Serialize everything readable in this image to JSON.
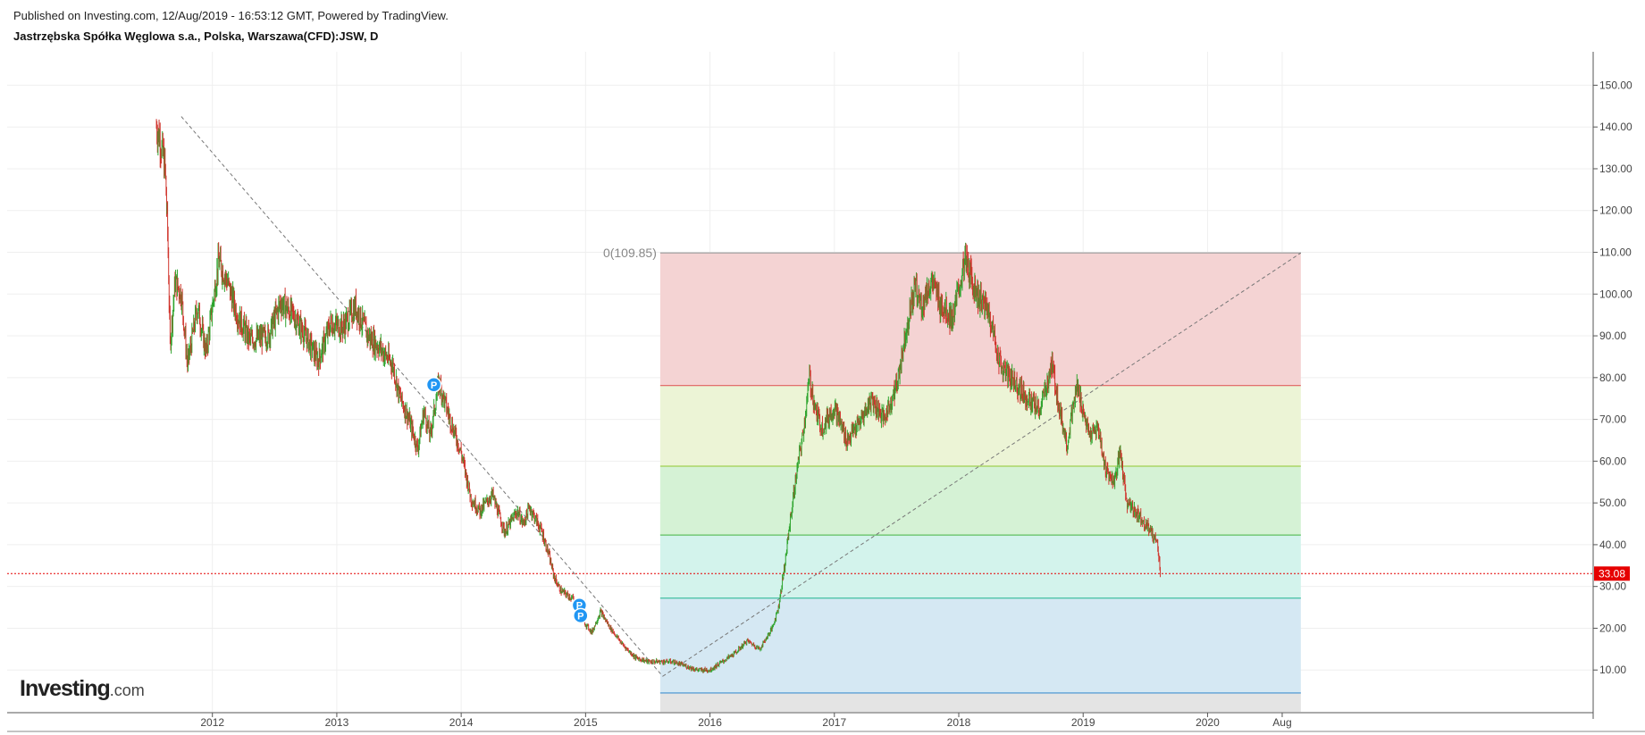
{
  "header": {
    "published": "Published on Investing.com, 12/Aug/2019 - 16:53:12 GMT, Powered by TradingView.",
    "symbol": "Jastrzębska Spółka Węglowa s.a., Polska, Warszawa(CFD):JSW, D"
  },
  "logo": {
    "brand": "Investing",
    "suffix": ".com"
  },
  "colors": {
    "up": "#2fa52f",
    "down": "#d0342c",
    "last_price": "#e60000"
  },
  "chart_data": {
    "type": "line",
    "ylim": [
      0,
      158
    ],
    "y_ticks": [
      "10.00",
      "20.00",
      "30.00",
      "40.00",
      "50.00",
      "60.00",
      "70.00",
      "80.00",
      "90.00",
      "100.00",
      "110.00",
      "120.00",
      "130.00",
      "140.00",
      "150.00"
    ],
    "y_tick_values": [
      10,
      20,
      30,
      40,
      50,
      60,
      70,
      80,
      90,
      100,
      110,
      120,
      130,
      140,
      150
    ],
    "x_ticks": [
      "2012",
      "2013",
      "2014",
      "2015",
      "2016",
      "2017",
      "2018",
      "2019",
      "2020",
      "Aug"
    ],
    "x_tick_values": [
      2012.0,
      2013.0,
      2014.0,
      2015.0,
      2016.0,
      2017.0,
      2018.0,
      2019.0,
      2020.0,
      2020.6
    ],
    "xlim": [
      2010.35,
      2023.1
    ],
    "last_price": 33.08,
    "last_price_label": "33.08",
    "series": [
      {
        "x": [
          2011.55,
          2011.58,
          2011.62,
          2011.64,
          2011.66,
          2011.7,
          2011.75,
          2011.8,
          2011.88,
          2011.95,
          2012.05,
          2012.12,
          2012.2,
          2012.3,
          2012.45,
          2012.55,
          2012.65,
          2012.75,
          2012.85,
          2012.95,
          2013.05,
          2013.15,
          2013.25,
          2013.35,
          2013.45,
          2013.5,
          2013.58,
          2013.65,
          2013.7,
          2013.75,
          2013.82,
          2013.9,
          2014.0,
          2014.08,
          2014.15,
          2014.25,
          2014.35,
          2014.45,
          2014.5,
          2014.55,
          2014.65,
          2014.7,
          2014.75,
          2014.8,
          2014.9,
          2014.95,
          2015.05,
          2015.12,
          2015.2,
          2015.3,
          2015.4,
          2015.5,
          2015.6,
          2015.7,
          2015.8,
          2015.9,
          2016.0,
          2016.1,
          2016.2,
          2016.3,
          2016.4,
          2016.5,
          2016.55,
          2016.6,
          2016.65,
          2016.7,
          2016.75,
          2016.8,
          2016.85,
          2016.9,
          2017.0,
          2017.1,
          2017.2,
          2017.3,
          2017.4,
          2017.5,
          2017.58,
          2017.65,
          2017.7,
          2017.78,
          2017.85,
          2017.95,
          2018.05,
          2018.15,
          2018.25,
          2018.3,
          2018.35,
          2018.45,
          2018.55,
          2018.65,
          2018.75,
          2018.8,
          2018.87,
          2018.95,
          2019.05,
          2019.12,
          2019.18,
          2019.25,
          2019.3,
          2019.35,
          2019.45,
          2019.5,
          2019.55,
          2019.6,
          2019.62
        ],
        "y": [
          140,
          137,
          130,
          115,
          88,
          103,
          100,
          83,
          97,
          86,
          108,
          103,
          95,
          89,
          90,
          98,
          95,
          90,
          84,
          93,
          92,
          97,
          90,
          87,
          83,
          76,
          70,
          63,
          72,
          66,
          79,
          71,
          62,
          51,
          48,
          52,
          43,
          48,
          45,
          49,
          43,
          38,
          32,
          29,
          27,
          23,
          19,
          24,
          20,
          16,
          13,
          12,
          12,
          12,
          11,
          10,
          10,
          12,
          14,
          17,
          15,
          20,
          25,
          35,
          47,
          58,
          67,
          80,
          72,
          68,
          73,
          65,
          69,
          75,
          70,
          78,
          92,
          102,
          97,
          103,
          98,
          94,
          108,
          100,
          95,
          87,
          82,
          79,
          75,
          72,
          83,
          74,
          64,
          78,
          66,
          68,
          58,
          55,
          62,
          50,
          47,
          45,
          43,
          40,
          33.08
        ]
      }
    ],
    "fib_levels": [
      {
        "label": "0(109.85)",
        "value": 109.85
      },
      {
        "value": 78.1
      },
      {
        "value": 58.8
      },
      {
        "value": 42.3
      },
      {
        "value": 27.2
      },
      {
        "value": 4.5
      }
    ],
    "fib_fill_colors": [
      "#f4d3d3",
      "#ecf4d6",
      "#d5f2d5",
      "#d3f3ec",
      "#d5e8f3"
    ],
    "fib_line_colors": [
      "#999999",
      "#e06060",
      "#a0d050",
      "#60c060",
      "#40c0a0",
      "#4090d0"
    ],
    "fib_x_range": [
      2015.6,
      2020.75
    ],
    "trend_lines": [
      {
        "from": [
          2011.75,
          142.5
        ],
        "to": [
          2015.62,
          8.5
        ]
      },
      {
        "from": [
          2015.62,
          8.5
        ],
        "to": [
          2020.75,
          109.85
        ]
      }
    ],
    "markers": [
      {
        "label": "P",
        "x": 2013.78,
        "y": 78.3
      },
      {
        "label": "P",
        "x": 2014.95,
        "y": 25.5
      },
      {
        "label": "P",
        "x": 2014.96,
        "y": 23.0
      }
    ]
  }
}
